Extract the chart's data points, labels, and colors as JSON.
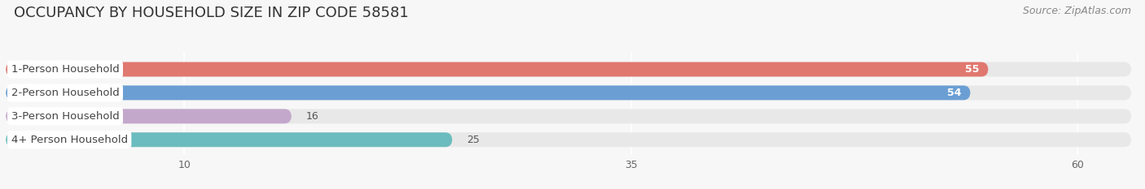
{
  "title": "OCCUPANCY BY HOUSEHOLD SIZE IN ZIP CODE 58581",
  "source": "Source: ZipAtlas.com",
  "categories": [
    "1-Person Household",
    "2-Person Household",
    "3-Person Household",
    "4+ Person Household"
  ],
  "values": [
    55,
    54,
    16,
    25
  ],
  "bar_colors": [
    "#E07870",
    "#6B9FD4",
    "#C4A8CC",
    "#6BBCBE"
  ],
  "label_color": "#444444",
  "value_color_inside": "#ffffff",
  "value_color_outside": "#555555",
  "xlim": [
    0,
    63
  ],
  "xticks": [
    10,
    35,
    60
  ],
  "bar_height": 0.62,
  "bg_color": "#f7f7f7",
  "bar_bg_color": "#e8e8e8",
  "title_fontsize": 13,
  "source_fontsize": 9,
  "label_fontsize": 9.5,
  "value_fontsize": 9
}
